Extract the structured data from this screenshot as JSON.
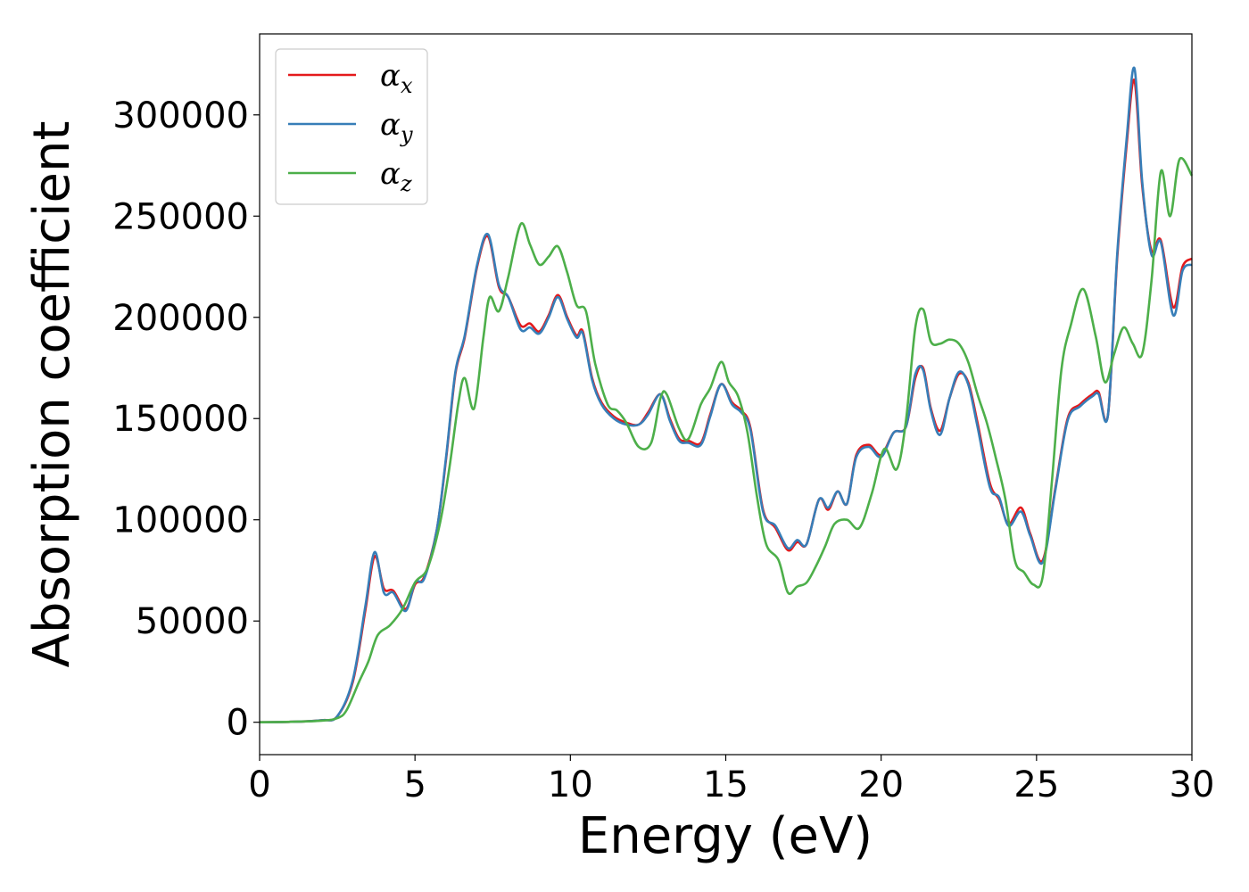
{
  "chart_data": {
    "type": "line",
    "xlabel": "Energy (eV)",
    "ylabel": "Absorption coefficient",
    "xlim": [
      0,
      30
    ],
    "ylim": [
      -16000,
      340000
    ],
    "xticks": [
      0,
      5,
      10,
      15,
      20,
      25,
      30
    ],
    "yticks": [
      0,
      50000,
      100000,
      150000,
      200000,
      250000,
      300000
    ],
    "grid": false,
    "legend_position": "top-left",
    "series": [
      {
        "name": "α_x",
        "symbol": "α",
        "subscript": "x",
        "color": "#e41a1c",
        "x": [
          0,
          1,
          2,
          2.5,
          3,
          3.4,
          3.7,
          4.0,
          4.3,
          4.7,
          5.0,
          5.3,
          5.7,
          6.0,
          6.3,
          6.6,
          7.0,
          7.35,
          7.7,
          8.0,
          8.4,
          8.7,
          9.0,
          9.3,
          9.6,
          9.9,
          10.2,
          10.4,
          10.7,
          11.0,
          11.4,
          11.8,
          12.2,
          12.5,
          12.9,
          13.2,
          13.5,
          13.8,
          14.2,
          14.5,
          14.85,
          15.2,
          15.5,
          15.8,
          16.2,
          16.6,
          17.0,
          17.3,
          17.6,
          18.0,
          18.3,
          18.6,
          18.9,
          19.2,
          19.6,
          20.0,
          20.4,
          20.8,
          21.1,
          21.35,
          21.6,
          21.9,
          22.2,
          22.5,
          22.8,
          23.1,
          23.5,
          23.8,
          24.1,
          24.5,
          24.8,
          25.2,
          25.6,
          26.0,
          26.4,
          26.8,
          27.0,
          27.3,
          27.6,
          27.9,
          28.15,
          28.4,
          28.7,
          29.0,
          29.4,
          29.7,
          30.0
        ],
        "y": [
          0,
          200,
          1000,
          3000,
          20000,
          55000,
          82000,
          66000,
          65000,
          56000,
          68000,
          72000,
          95000,
          130000,
          172000,
          190000,
          225000,
          240000,
          215000,
          210000,
          196000,
          197000,
          193000,
          201000,
          211000,
          200000,
          191000,
          193000,
          170000,
          158000,
          151000,
          148000,
          147000,
          153000,
          162000,
          150000,
          140000,
          139000,
          138000,
          152000,
          167000,
          158000,
          154000,
          145000,
          105000,
          96000,
          85000,
          89000,
          88000,
          110000,
          105000,
          114000,
          108000,
          132000,
          137000,
          132000,
          143000,
          146000,
          170000,
          175000,
          155000,
          144000,
          160000,
          172000,
          168000,
          148000,
          118000,
          110000,
          98000,
          106000,
          93000,
          80000,
          115000,
          150000,
          157000,
          162000,
          163000,
          152000,
          230000,
          285000,
          317000,
          265000,
          233000,
          238000,
          205000,
          225000,
          229000
        ]
      },
      {
        "name": "α_y",
        "symbol": "α",
        "subscript": "y",
        "color": "#377eb8",
        "x": [
          0,
          1,
          2,
          2.5,
          3,
          3.4,
          3.7,
          4.0,
          4.3,
          4.7,
          5.0,
          5.3,
          5.7,
          6.0,
          6.3,
          6.6,
          7.0,
          7.35,
          7.7,
          8.0,
          8.4,
          8.7,
          9.0,
          9.3,
          9.6,
          9.9,
          10.2,
          10.4,
          10.7,
          11.0,
          11.4,
          11.8,
          12.2,
          12.5,
          12.9,
          13.2,
          13.5,
          13.8,
          14.2,
          14.5,
          14.85,
          15.2,
          15.5,
          15.8,
          16.2,
          16.6,
          17.0,
          17.3,
          17.6,
          18.0,
          18.3,
          18.6,
          18.9,
          19.2,
          19.6,
          20.0,
          20.4,
          20.8,
          21.1,
          21.35,
          21.6,
          21.9,
          22.2,
          22.5,
          22.8,
          23.1,
          23.5,
          23.8,
          24.1,
          24.5,
          24.8,
          25.2,
          25.6,
          26.0,
          26.4,
          26.8,
          27.0,
          27.3,
          27.6,
          27.9,
          28.15,
          28.4,
          28.7,
          29.0,
          29.4,
          29.7,
          30.0
        ],
        "y": [
          0,
          200,
          1000,
          3000,
          21000,
          57000,
          84000,
          64000,
          64000,
          55000,
          69000,
          71000,
          95000,
          131000,
          173000,
          191000,
          226000,
          241000,
          216000,
          210000,
          194000,
          195000,
          192000,
          200000,
          210000,
          199000,
          190000,
          192000,
          169000,
          157000,
          150000,
          147000,
          147000,
          152000,
          162000,
          149000,
          139000,
          138000,
          137000,
          151000,
          167000,
          157000,
          153000,
          144000,
          104000,
          97000,
          86000,
          90000,
          88000,
          110000,
          106000,
          114000,
          108000,
          131000,
          136000,
          131000,
          143000,
          146000,
          172000,
          174000,
          154000,
          142000,
          160000,
          173000,
          167000,
          146000,
          116000,
          111000,
          97000,
          104000,
          92000,
          79000,
          114000,
          149000,
          156000,
          161000,
          162000,
          152000,
          232000,
          288000,
          323000,
          267000,
          231000,
          237000,
          201000,
          223000,
          226000
        ]
      },
      {
        "name": "α_z",
        "symbol": "α",
        "subscript": "z",
        "color": "#4daf4a",
        "x": [
          0,
          1,
          2,
          2.5,
          2.8,
          3.2,
          3.5,
          3.8,
          4.2,
          4.6,
          5.0,
          5.4,
          5.8,
          6.1,
          6.4,
          6.6,
          6.9,
          7.2,
          7.4,
          7.7,
          8.0,
          8.4,
          8.7,
          9.0,
          9.3,
          9.6,
          9.9,
          10.2,
          10.5,
          10.8,
          11.2,
          11.5,
          11.8,
          12.2,
          12.6,
          12.9,
          13.1,
          13.5,
          13.8,
          14.2,
          14.5,
          14.85,
          15.1,
          15.4,
          15.7,
          16.0,
          16.3,
          16.7,
          17.0,
          17.3,
          17.6,
          17.9,
          18.2,
          18.5,
          18.9,
          19.3,
          19.7,
          20.1,
          20.5,
          20.8,
          21.1,
          21.35,
          21.6,
          21.9,
          22.2,
          22.5,
          22.8,
          23.1,
          23.4,
          23.7,
          24.0,
          24.3,
          24.6,
          24.9,
          25.2,
          25.5,
          25.8,
          26.1,
          26.5,
          26.9,
          27.2,
          27.5,
          27.8,
          28.1,
          28.4,
          28.7,
          29.0,
          29.3,
          29.6,
          30.0
        ],
        "y": [
          0,
          200,
          800,
          2000,
          6000,
          20000,
          30000,
          43000,
          48000,
          56000,
          69000,
          76000,
          98000,
          125000,
          158000,
          170000,
          155000,
          190000,
          210000,
          203000,
          220000,
          246000,
          236000,
          226000,
          230000,
          235000,
          222000,
          206000,
          203000,
          177000,
          157000,
          154000,
          148000,
          136000,
          138000,
          160000,
          162000,
          145000,
          140000,
          157000,
          165000,
          178000,
          168000,
          161000,
          143000,
          112000,
          88000,
          80000,
          64000,
          67000,
          69000,
          77000,
          87000,
          98000,
          100000,
          96000,
          113000,
          135000,
          125000,
          149000,
          195000,
          204000,
          188000,
          187000,
          189000,
          187000,
          178000,
          162000,
          148000,
          130000,
          110000,
          80000,
          74000,
          68000,
          72000,
          120000,
          174000,
          196000,
          214000,
          191000,
          168000,
          182000,
          195000,
          187000,
          182000,
          218000,
          272000,
          250000,
          278000,
          270000
        ]
      }
    ]
  }
}
